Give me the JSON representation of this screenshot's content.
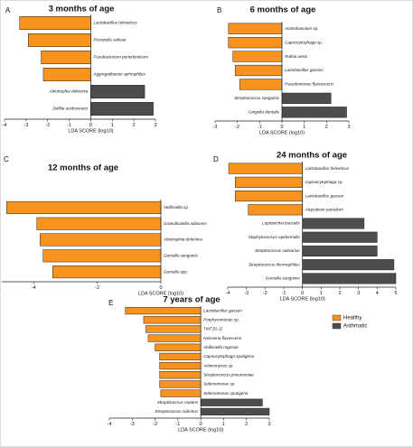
{
  "chart_data": [
    {
      "type": "bar",
      "orientation": "horizontal",
      "panel": "A",
      "title": "3 months of age",
      "xlabel": "LDA SCORE (log10)",
      "categories": [
        "Lactobacillus helveticus",
        "Prevotella salivae",
        "Fusobacterium periodonticum",
        "Aggregatibacter aphrophilus",
        "Abiotrophia defectiva",
        "Delftia acidovorans"
      ],
      "values": [
        -3.3,
        -2.9,
        -2.3,
        -2.2,
        2.5,
        2.9
      ],
      "xlim": [
        -4,
        3
      ],
      "xticks": [
        -4,
        -3,
        -2,
        -1,
        0,
        1,
        2,
        3
      ]
    },
    {
      "type": "bar",
      "orientation": "horizontal",
      "panel": "B",
      "title": "6 months of age",
      "xlabel": "LDA SCORE (log10)",
      "categories": [
        "Actinobaculum sp.",
        "Capnocytophaga sp.",
        "Rothia aeria",
        "Lactobacillus gasseri",
        "Pseudomonas fluorescens",
        "Streptococcus sanguinis",
        "Gingella dentalis"
      ],
      "values": [
        -2.4,
        -2.4,
        -2.2,
        -2.1,
        -1.9,
        2.2,
        2.9
      ],
      "xlim": [
        -3,
        3
      ],
      "xticks": [
        -3,
        -2,
        -1,
        0,
        1,
        2,
        3
      ]
    },
    {
      "type": "bar",
      "orientation": "horizontal",
      "panel": "C",
      "title": "12 months of age",
      "xlabel": "LDA SCORE (log10)",
      "categories": [
        "Veillonella sp.",
        "Granulicatella adiacens",
        "Abiotrophia defectiva",
        "Gemella sanguinis",
        "Gemella spp."
      ],
      "values": [
        -4.85,
        -3.9,
        -3.8,
        -3.7,
        -3.4
      ],
      "xlim": [
        -5,
        0
      ],
      "xticks": [
        -4,
        -2,
        0
      ]
    },
    {
      "type": "bar",
      "orientation": "horizontal",
      "panel": "D",
      "title": "24 months of age",
      "xlabel": "LDA SCORE (log10)",
      "categories": [
        "Lactobacillus helveticus",
        "Capnocytophaga sp.",
        "Lactobacillus gasseri",
        "Atopobium parvulum",
        "Leptotrichia buccalis",
        "Staphylococcus epidermidis",
        "Streptococcus salivarius",
        "Streptococcus thermophilus",
        "Gemella sanguinis"
      ],
      "values": [
        -3.95,
        -3.6,
        -3.6,
        -2.9,
        3.3,
        4.0,
        4.0,
        4.9,
        5.0
      ],
      "xlim": [
        -4,
        5
      ],
      "xticks": [
        -4,
        -3,
        -2,
        -1,
        0,
        1,
        2,
        3,
        4,
        5
      ]
    },
    {
      "type": "bar",
      "orientation": "horizontal",
      "panel": "E",
      "title": "7 years of age",
      "xlabel": "LDA SCORE (log10)",
      "categories": [
        "Lactobacillus gasseri",
        "Porphyromonas sp.",
        "TM7 [G-1]",
        "Neisseria flavescens",
        "Veillonella rogosae",
        "Capnocytophaga sputigena",
        "Actinomyces sp.",
        "Streptococcus pneumoniae",
        "Selenomonas sp.",
        "Selenomonas sputigena",
        "Streptococcus mutans",
        "Streptococcus sobrinus"
      ],
      "values": [
        -3.3,
        -2.5,
        -2.4,
        -2.3,
        -2.0,
        -1.8,
        -1.8,
        -1.8,
        -1.8,
        -1.75,
        2.7,
        3.0
      ],
      "xlim": [
        -4,
        3
      ],
      "xticks": [
        -4,
        -3,
        -2,
        -1,
        0,
        1,
        2,
        3
      ]
    }
  ],
  "legend": [
    {
      "name": "Healthy",
      "color": "#f7931e"
    },
    {
      "name": "Asthmatic",
      "color": "#4d4d4d"
    }
  ]
}
